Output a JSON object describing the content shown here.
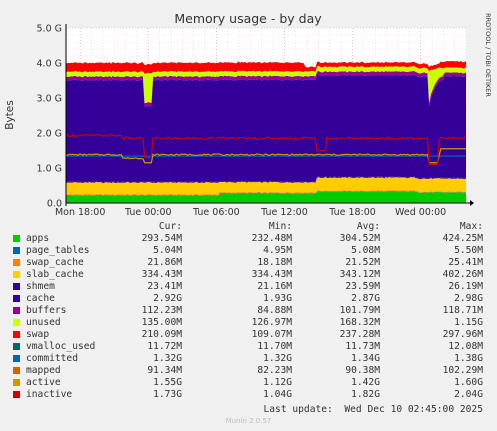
{
  "title": "Memory usage - by day",
  "watermark": "RRDTOOL / TOBI OETIKER",
  "chart_data": {
    "type": "area",
    "title": "Memory usage - by day",
    "ylabel": "Bytes",
    "ylim": [
      0,
      5
    ],
    "yunit": "G",
    "yticks": [
      "0.0",
      "1.0 G",
      "2.0 G",
      "3.0 G",
      "4.0 G",
      "5.0 G"
    ],
    "x_start": "Mon 16:45",
    "x_end": "Wed 04:00",
    "xticks": [
      "Mon 18:00",
      "Tue 00:00",
      "Tue 06:00",
      "Tue 12:00",
      "Tue 18:00",
      "Wed 00:00"
    ],
    "grid": true,
    "stack": [
      {
        "name": "apps",
        "color": "#00cc00",
        "base": 0.3
      },
      {
        "name": "page_tables",
        "color": "#0066b3",
        "base": 0.005
      },
      {
        "name": "swap_cache",
        "color": "#ff8000",
        "base": 0.02
      },
      {
        "name": "slab_cache",
        "color": "#ffcc00",
        "base": 0.34
      },
      {
        "name": "shmem",
        "color": "#330099",
        "base": 0.023
      },
      {
        "name": "cache",
        "color": "#330099",
        "base": 2.9
      },
      {
        "name": "buffers",
        "color": "#990099",
        "base": 0.105
      },
      {
        "name": "unused",
        "color": "#ccff00",
        "base": 0.14
      },
      {
        "name": "swap",
        "color": "#ff0000",
        "base": 0.23
      }
    ],
    "lines": [
      {
        "name": "committed",
        "color": "#0066b3",
        "base": 1.34
      },
      {
        "name": "active",
        "color": "#cc9900",
        "base": 1.42
      },
      {
        "name": "inactive",
        "color": "#cc0000",
        "base": 1.82
      }
    ]
  },
  "legend": {
    "headers": {
      "cur": "Cur:",
      "min": "Min:",
      "avg": "Avg:",
      "max": "Max:"
    },
    "rows": [
      {
        "name": "apps",
        "color": "#00cc00",
        "cur": "293.54M",
        "min": "232.48M",
        "avg": "304.52M",
        "max": "424.25M"
      },
      {
        "name": "page_tables",
        "color": "#0066b3",
        "cur": "5.04M",
        "min": "4.95M",
        "avg": "5.08M",
        "max": "5.50M"
      },
      {
        "name": "swap_cache",
        "color": "#ff8000",
        "cur": "21.86M",
        "min": "18.18M",
        "avg": "21.52M",
        "max": "25.41M"
      },
      {
        "name": "slab_cache",
        "color": "#ffcc00",
        "cur": "334.43M",
        "min": "334.43M",
        "avg": "343.12M",
        "max": "402.26M"
      },
      {
        "name": "shmem",
        "color": "#330099",
        "cur": "23.41M",
        "min": "21.16M",
        "avg": "23.59M",
        "max": "26.19M"
      },
      {
        "name": "cache",
        "color": "#330099",
        "cur": "2.92G",
        "min": "1.93G",
        "avg": "2.87G",
        "max": "2.98G"
      },
      {
        "name": "buffers",
        "color": "#990099",
        "cur": "112.23M",
        "min": "84.88M",
        "avg": "101.79M",
        "max": "118.71M"
      },
      {
        "name": "unused",
        "color": "#ccff00",
        "cur": "135.00M",
        "min": "126.97M",
        "avg": "168.32M",
        "max": "1.15G"
      },
      {
        "name": "swap",
        "color": "#ff0000",
        "cur": "210.09M",
        "min": "109.07M",
        "avg": "237.28M",
        "max": "297.96M"
      },
      {
        "name": "vmalloc_used",
        "color": "#006666",
        "cur": "11.72M",
        "min": "11.70M",
        "avg": "11.73M",
        "max": "12.08M"
      },
      {
        "name": "committed",
        "color": "#0066b3",
        "cur": "1.32G",
        "min": "1.32G",
        "avg": "1.34G",
        "max": "1.38G"
      },
      {
        "name": "mapped",
        "color": "#cc6600",
        "cur": "91.34M",
        "min": "82.23M",
        "avg": "90.38M",
        "max": "102.29M"
      },
      {
        "name": "active",
        "color": "#cc9900",
        "cur": "1.55G",
        "min": "1.12G",
        "avg": "1.42G",
        "max": "1.60G"
      },
      {
        "name": "inactive",
        "color": "#cc0000",
        "cur": "1.73G",
        "min": "1.04G",
        "avg": "1.82G",
        "max": "2.04G"
      }
    ]
  },
  "last_update": "Last update:  Wed Dec 10 02:45:00 2025",
  "version": "Munin 2.0.57"
}
